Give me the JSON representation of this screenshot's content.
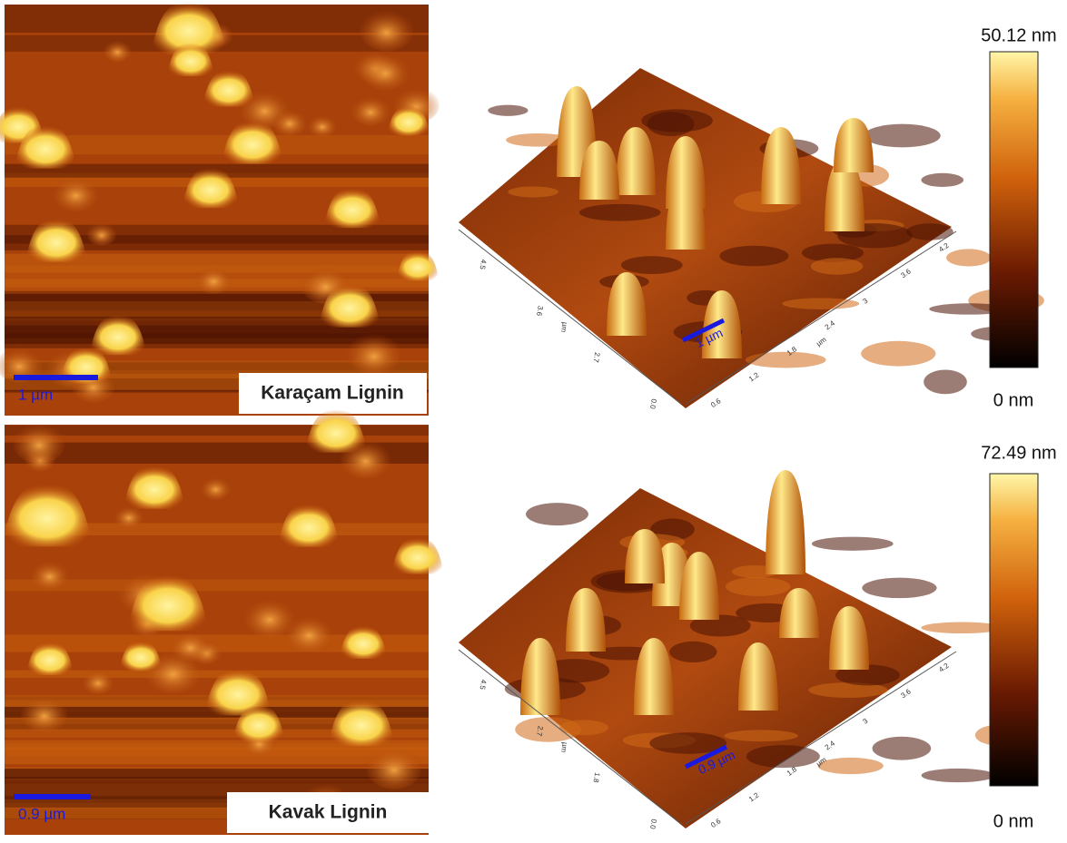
{
  "panels": [
    {
      "label": "Karaçam Lignin",
      "scale_2d": "1 µm",
      "scale_3d": "1 µm",
      "colorbar": {
        "max": "50.12 nm",
        "min": "0 nm"
      },
      "axis_right_ticks": [
        "0.6",
        "1.2",
        "1.8",
        "2.4",
        "3",
        "3.6",
        "4.2"
      ],
      "axis_left_ticks": [
        "0.0",
        "2.7",
        "3.6",
        "4.5"
      ],
      "axis_unit": "µm"
    },
    {
      "label": "Kavak Lignin",
      "scale_2d": "0.9 µm",
      "scale_3d": "0.9 µm",
      "colorbar": {
        "max": "72.49 nm",
        "min": "0 nm"
      },
      "axis_right_ticks": [
        "0.6",
        "1.2",
        "1.8",
        "2.4",
        "3",
        "3.6",
        "4.2"
      ],
      "axis_left_ticks": [
        "0.0",
        "1.8",
        "2.7",
        "4.5"
      ],
      "axis_unit": "µm"
    }
  ]
}
